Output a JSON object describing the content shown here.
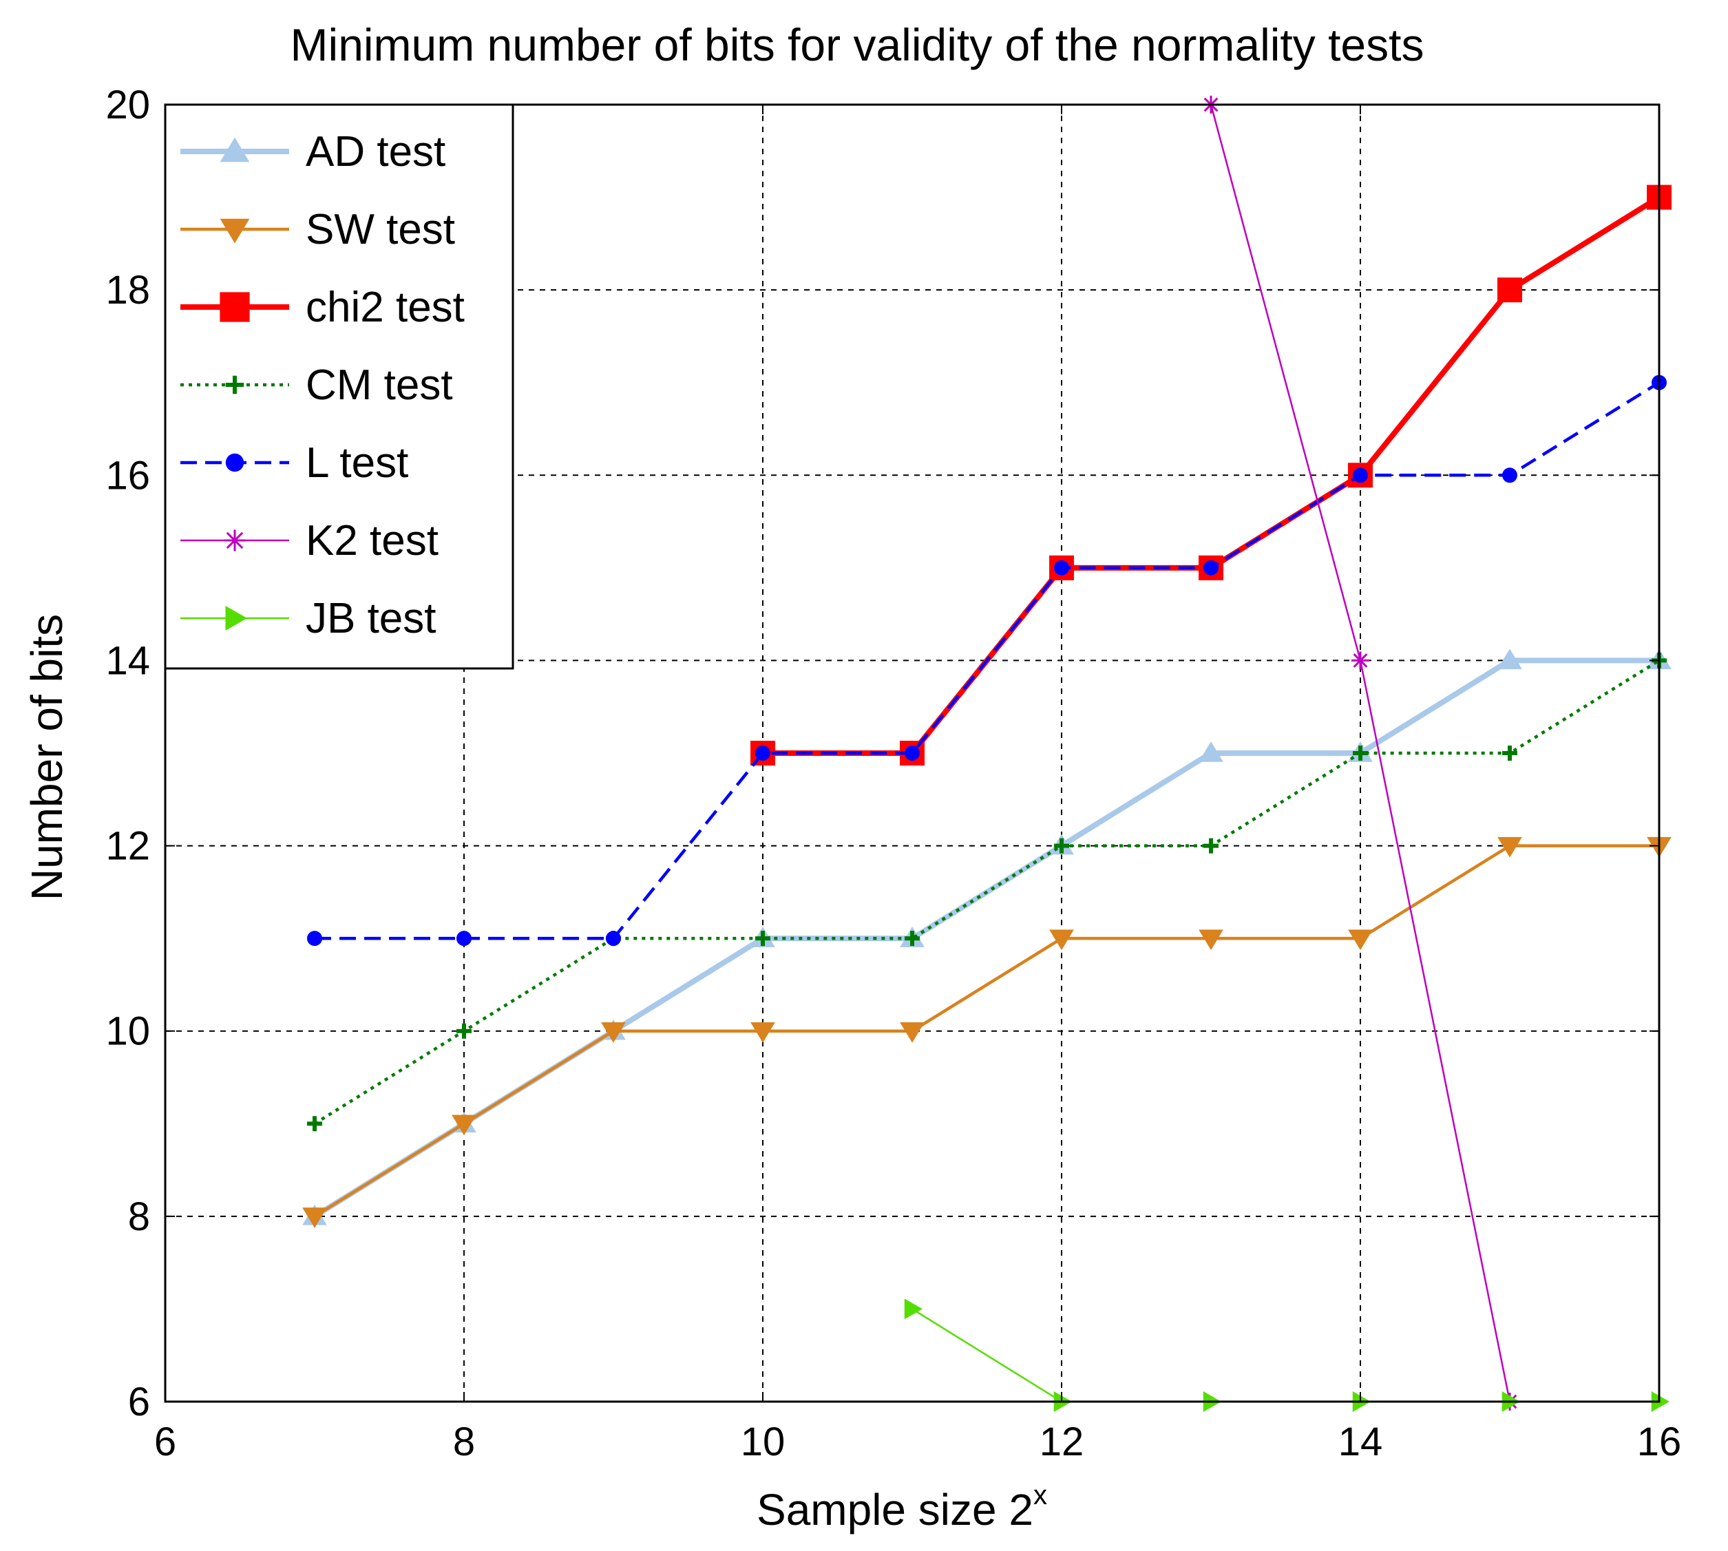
{
  "chart_data": {
    "type": "line",
    "title": "Minimum number of bits for validity of the normality tests",
    "xlabel": "Sample size 2",
    "xlabel_superscript": "x",
    "ylabel": "Number of bits",
    "xlim": [
      6,
      16
    ],
    "ylim": [
      6,
      20
    ],
    "xticks": [
      6,
      8,
      10,
      12,
      14,
      16
    ],
    "yticks": [
      6,
      8,
      10,
      12,
      14,
      16,
      18,
      20
    ],
    "grid": true,
    "legend_position": "top-left",
    "series": [
      {
        "name": "AD test",
        "color": "#a9c9ea",
        "marker": "triangle-up",
        "dash": "solid",
        "width": "thick",
        "x": [
          7,
          8,
          9,
          10,
          11,
          12,
          13,
          14,
          15,
          16
        ],
        "y": [
          8,
          9,
          10,
          11,
          11,
          12,
          13,
          13,
          14,
          14
        ]
      },
      {
        "name": "SW test",
        "color": "#d9821e",
        "marker": "triangle-down",
        "dash": "solid",
        "width": "medium",
        "x": [
          7,
          8,
          9,
          10,
          11,
          12,
          13,
          14,
          15,
          16
        ],
        "y": [
          8,
          9,
          10,
          10,
          10,
          11,
          11,
          11,
          12,
          12
        ]
      },
      {
        "name": "chi2 test",
        "color": "#ff0000",
        "marker": "square",
        "dash": "solid",
        "width": "thick",
        "x": [
          10,
          11,
          12,
          13,
          14,
          15,
          16
        ],
        "y": [
          13,
          13,
          15,
          15,
          16,
          18,
          19
        ]
      },
      {
        "name": "CM test",
        "color": "#007a00",
        "marker": "plus",
        "dash": "dotted",
        "width": "medium",
        "x": [
          7,
          8,
          9,
          10,
          11,
          12,
          13,
          14,
          15,
          16
        ],
        "y": [
          9,
          10,
          11,
          11,
          11,
          12,
          12,
          13,
          13,
          14
        ]
      },
      {
        "name": "L test",
        "color": "#0000ff",
        "marker": "circle",
        "dash": "dashed",
        "width": "medium",
        "x": [
          7,
          8,
          9,
          10,
          11,
          12,
          13,
          14,
          15,
          16
        ],
        "y": [
          11,
          11,
          11,
          13,
          13,
          15,
          15,
          16,
          16,
          17
        ]
      },
      {
        "name": "K2 test",
        "color": "#bf00bf",
        "marker": "star",
        "dash": "solid",
        "width": "thin",
        "x": [
          13,
          14,
          15
        ],
        "y": [
          20,
          14,
          6
        ]
      },
      {
        "name": "JB test",
        "color": "#55dd00",
        "marker": "triangle-right",
        "dash": "solid",
        "width": "thin",
        "x": [
          11,
          12,
          13,
          14,
          15,
          16
        ],
        "y": [
          7,
          6,
          6,
          6,
          6,
          6
        ]
      }
    ]
  }
}
